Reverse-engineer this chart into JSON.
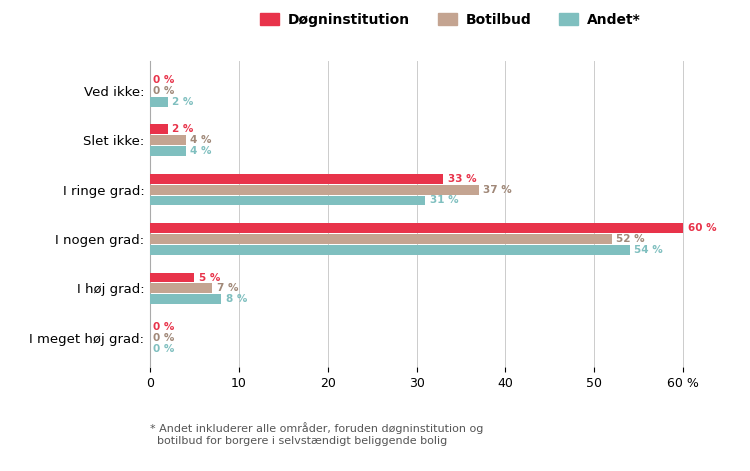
{
  "categories": [
    "I meget høj grad:",
    "I høj grad:",
    "I nogen grad:",
    "I ringe grad:",
    "Slet ikke:",
    "Ved ikke:"
  ],
  "series": {
    "Døgninstitution": [
      0,
      5,
      60,
      33,
      2,
      0
    ],
    "Botilbud": [
      0,
      7,
      52,
      37,
      4,
      0
    ],
    "Andet*": [
      0,
      8,
      54,
      31,
      4,
      2
    ]
  },
  "colors": {
    "Døgninstitution": "#e8334a",
    "Botilbud": "#c4a491",
    "Andet*": "#7fbfbf"
  },
  "label_colors": {
    "Døgninstitution": "#e8334a",
    "Botilbud": "#a08878",
    "Andet*": "#7fbfbf"
  },
  "xlim": [
    0,
    65
  ],
  "xticks": [
    0,
    10,
    20,
    30,
    40,
    50,
    60
  ],
  "footnote": "* Andet inkluderer alle områder, foruden døgninstitution og\n  botilbud for borgere i selvstændigt beliggende bolig",
  "background_color": "#ffffff",
  "bar_height": 0.22
}
